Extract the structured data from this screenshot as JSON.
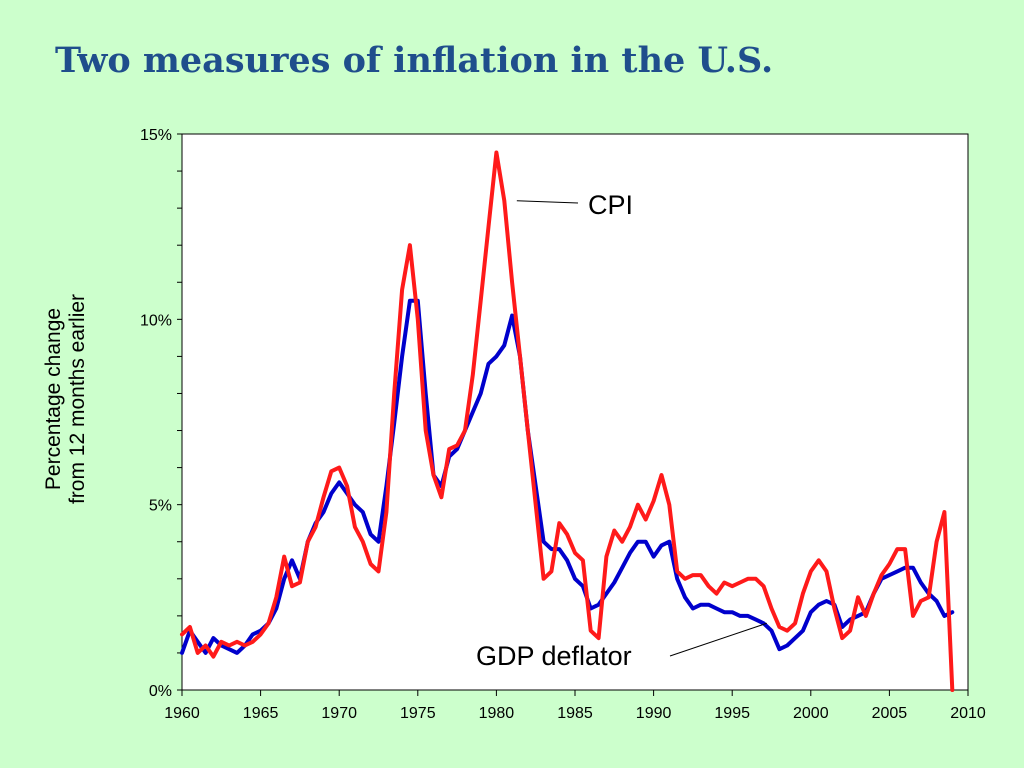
{
  "slide": {
    "title": "Two measures of inflation in the U.S.",
    "background": "#ccffcc",
    "title_color": "#1f4e8c"
  },
  "chart_data": {
    "type": "line",
    "title": "",
    "ylabel_lines": [
      "Percentage change",
      "from 12 months earlier"
    ],
    "xlim": [
      1960,
      2010
    ],
    "ylim": [
      0,
      15
    ],
    "xticks": [
      1960,
      1965,
      1970,
      1975,
      1980,
      1985,
      1990,
      1995,
      2000,
      2005,
      2010
    ],
    "xtick_labels": [
      "1960",
      "1965",
      "1970",
      "1975",
      "1980",
      "1985",
      "1990",
      "1995",
      "2000",
      "2005",
      "2010"
    ],
    "yticks": [
      0,
      5,
      10,
      15
    ],
    "ytick_labels": [
      "0%",
      "5%",
      "10%",
      "15%"
    ],
    "grid": false,
    "series": [
      {
        "name": "GDP deflator",
        "color": "#0000cc",
        "x": [
          1960,
          1960.5,
          1961,
          1961.5,
          1962,
          1962.5,
          1963,
          1963.5,
          1964,
          1964.5,
          1965,
          1965.5,
          1966,
          1966.5,
          1967,
          1967.5,
          1968,
          1968.5,
          1969,
          1969.5,
          1970,
          1970.5,
          1971,
          1971.5,
          1972,
          1972.5,
          1973,
          1973.5,
          1974,
          1974.5,
          1975,
          1975.5,
          1976,
          1976.5,
          1977,
          1977.5,
          1978,
          1978.5,
          1979,
          1979.5,
          1980,
          1980.5,
          1981,
          1981.5,
          1982,
          1982.5,
          1983,
          1983.5,
          1984,
          1984.5,
          1985,
          1985.5,
          1986,
          1986.5,
          1987,
          1987.5,
          1988,
          1988.5,
          1989,
          1989.5,
          1990,
          1990.5,
          1991,
          1991.5,
          1992,
          1992.5,
          1993,
          1993.5,
          1994,
          1994.5,
          1995,
          1995.5,
          1996,
          1996.5,
          1997,
          1997.5,
          1998,
          1998.5,
          1999,
          1999.5,
          2000,
          2000.5,
          2001,
          2001.5,
          2002,
          2002.5,
          2003,
          2003.5,
          2004,
          2004.5,
          2005,
          2005.5,
          2006,
          2006.5,
          2007,
          2007.5,
          2008,
          2008.5,
          2009
        ],
        "values": [
          1.0,
          1.6,
          1.3,
          1.0,
          1.4,
          1.2,
          1.1,
          1.0,
          1.2,
          1.5,
          1.6,
          1.8,
          2.2,
          3.0,
          3.5,
          3.0,
          4.0,
          4.5,
          4.8,
          5.3,
          5.6,
          5.3,
          5.0,
          4.8,
          4.2,
          4.0,
          5.5,
          7.2,
          9.0,
          10.5,
          10.5,
          8.0,
          5.8,
          5.5,
          6.3,
          6.5,
          7.0,
          7.5,
          8.0,
          8.8,
          9.0,
          9.3,
          10.1,
          9.0,
          7.0,
          5.5,
          4.0,
          3.8,
          3.8,
          3.5,
          3.0,
          2.8,
          2.2,
          2.3,
          2.6,
          2.9,
          3.3,
          3.7,
          4.0,
          4.0,
          3.6,
          3.9,
          4.0,
          3.0,
          2.5,
          2.2,
          2.3,
          2.3,
          2.2,
          2.1,
          2.1,
          2.0,
          2.0,
          1.9,
          1.8,
          1.6,
          1.1,
          1.2,
          1.4,
          1.6,
          2.1,
          2.3,
          2.4,
          2.3,
          1.7,
          1.9,
          2.0,
          2.1,
          2.6,
          3.0,
          3.1,
          3.2,
          3.3,
          3.3,
          2.9,
          2.6,
          2.4,
          2.0,
          2.1
        ]
      },
      {
        "name": "CPI",
        "color": "#ff1a1a",
        "x": [
          1960,
          1960.5,
          1961,
          1961.5,
          1962,
          1962.5,
          1963,
          1963.5,
          1964,
          1964.5,
          1965,
          1965.5,
          1966,
          1966.5,
          1967,
          1967.5,
          1968,
          1968.5,
          1969,
          1969.5,
          1970,
          1970.5,
          1971,
          1971.5,
          1972,
          1972.5,
          1973,
          1973.5,
          1974,
          1974.5,
          1975,
          1975.5,
          1976,
          1976.5,
          1977,
          1977.5,
          1978,
          1978.5,
          1979,
          1979.5,
          1980,
          1980.5,
          1981,
          1981.5,
          1982,
          1982.5,
          1983,
          1983.5,
          1984,
          1984.5,
          1985,
          1985.5,
          1986,
          1986.5,
          1987,
          1987.5,
          1988,
          1988.5,
          1989,
          1989.5,
          1990,
          1990.5,
          1991,
          1991.5,
          1992,
          1992.5,
          1993,
          1993.5,
          1994,
          1994.5,
          1995,
          1995.5,
          1996,
          1996.5,
          1997,
          1997.5,
          1998,
          1998.5,
          1999,
          1999.5,
          2000,
          2000.5,
          2001,
          2001.5,
          2002,
          2002.5,
          2003,
          2003.5,
          2004,
          2004.5,
          2005,
          2005.5,
          2006,
          2006.5,
          2007,
          2007.5,
          2008,
          2008.5,
          2009
        ],
        "values": [
          1.5,
          1.7,
          1.0,
          1.2,
          0.9,
          1.3,
          1.2,
          1.3,
          1.2,
          1.3,
          1.5,
          1.8,
          2.5,
          3.6,
          2.8,
          2.9,
          4.0,
          4.4,
          5.2,
          5.9,
          6.0,
          5.5,
          4.4,
          4.0,
          3.4,
          3.2,
          4.8,
          8.0,
          10.8,
          12.0,
          10.0,
          7.0,
          5.8,
          5.2,
          6.5,
          6.6,
          7.0,
          8.5,
          10.5,
          12.5,
          14.5,
          13.2,
          11.0,
          9.0,
          7.0,
          5.0,
          3.0,
          3.2,
          4.5,
          4.2,
          3.7,
          3.5,
          1.6,
          1.4,
          3.6,
          4.3,
          4.0,
          4.4,
          5.0,
          4.6,
          5.1,
          5.8,
          5.0,
          3.2,
          3.0,
          3.1,
          3.1,
          2.8,
          2.6,
          2.9,
          2.8,
          2.9,
          3.0,
          3.0,
          2.8,
          2.2,
          1.7,
          1.6,
          1.8,
          2.6,
          3.2,
          3.5,
          3.2,
          2.2,
          1.4,
          1.6,
          2.5,
          2.0,
          2.6,
          3.1,
          3.4,
          3.8,
          3.8,
          2.0,
          2.4,
          2.5,
          4.0,
          4.8,
          0.0
        ]
      }
    ],
    "annotations": [
      {
        "text": "CPI",
        "series": "CPI"
      },
      {
        "text": "GDP deflator",
        "series": "GDP deflator"
      }
    ]
  }
}
